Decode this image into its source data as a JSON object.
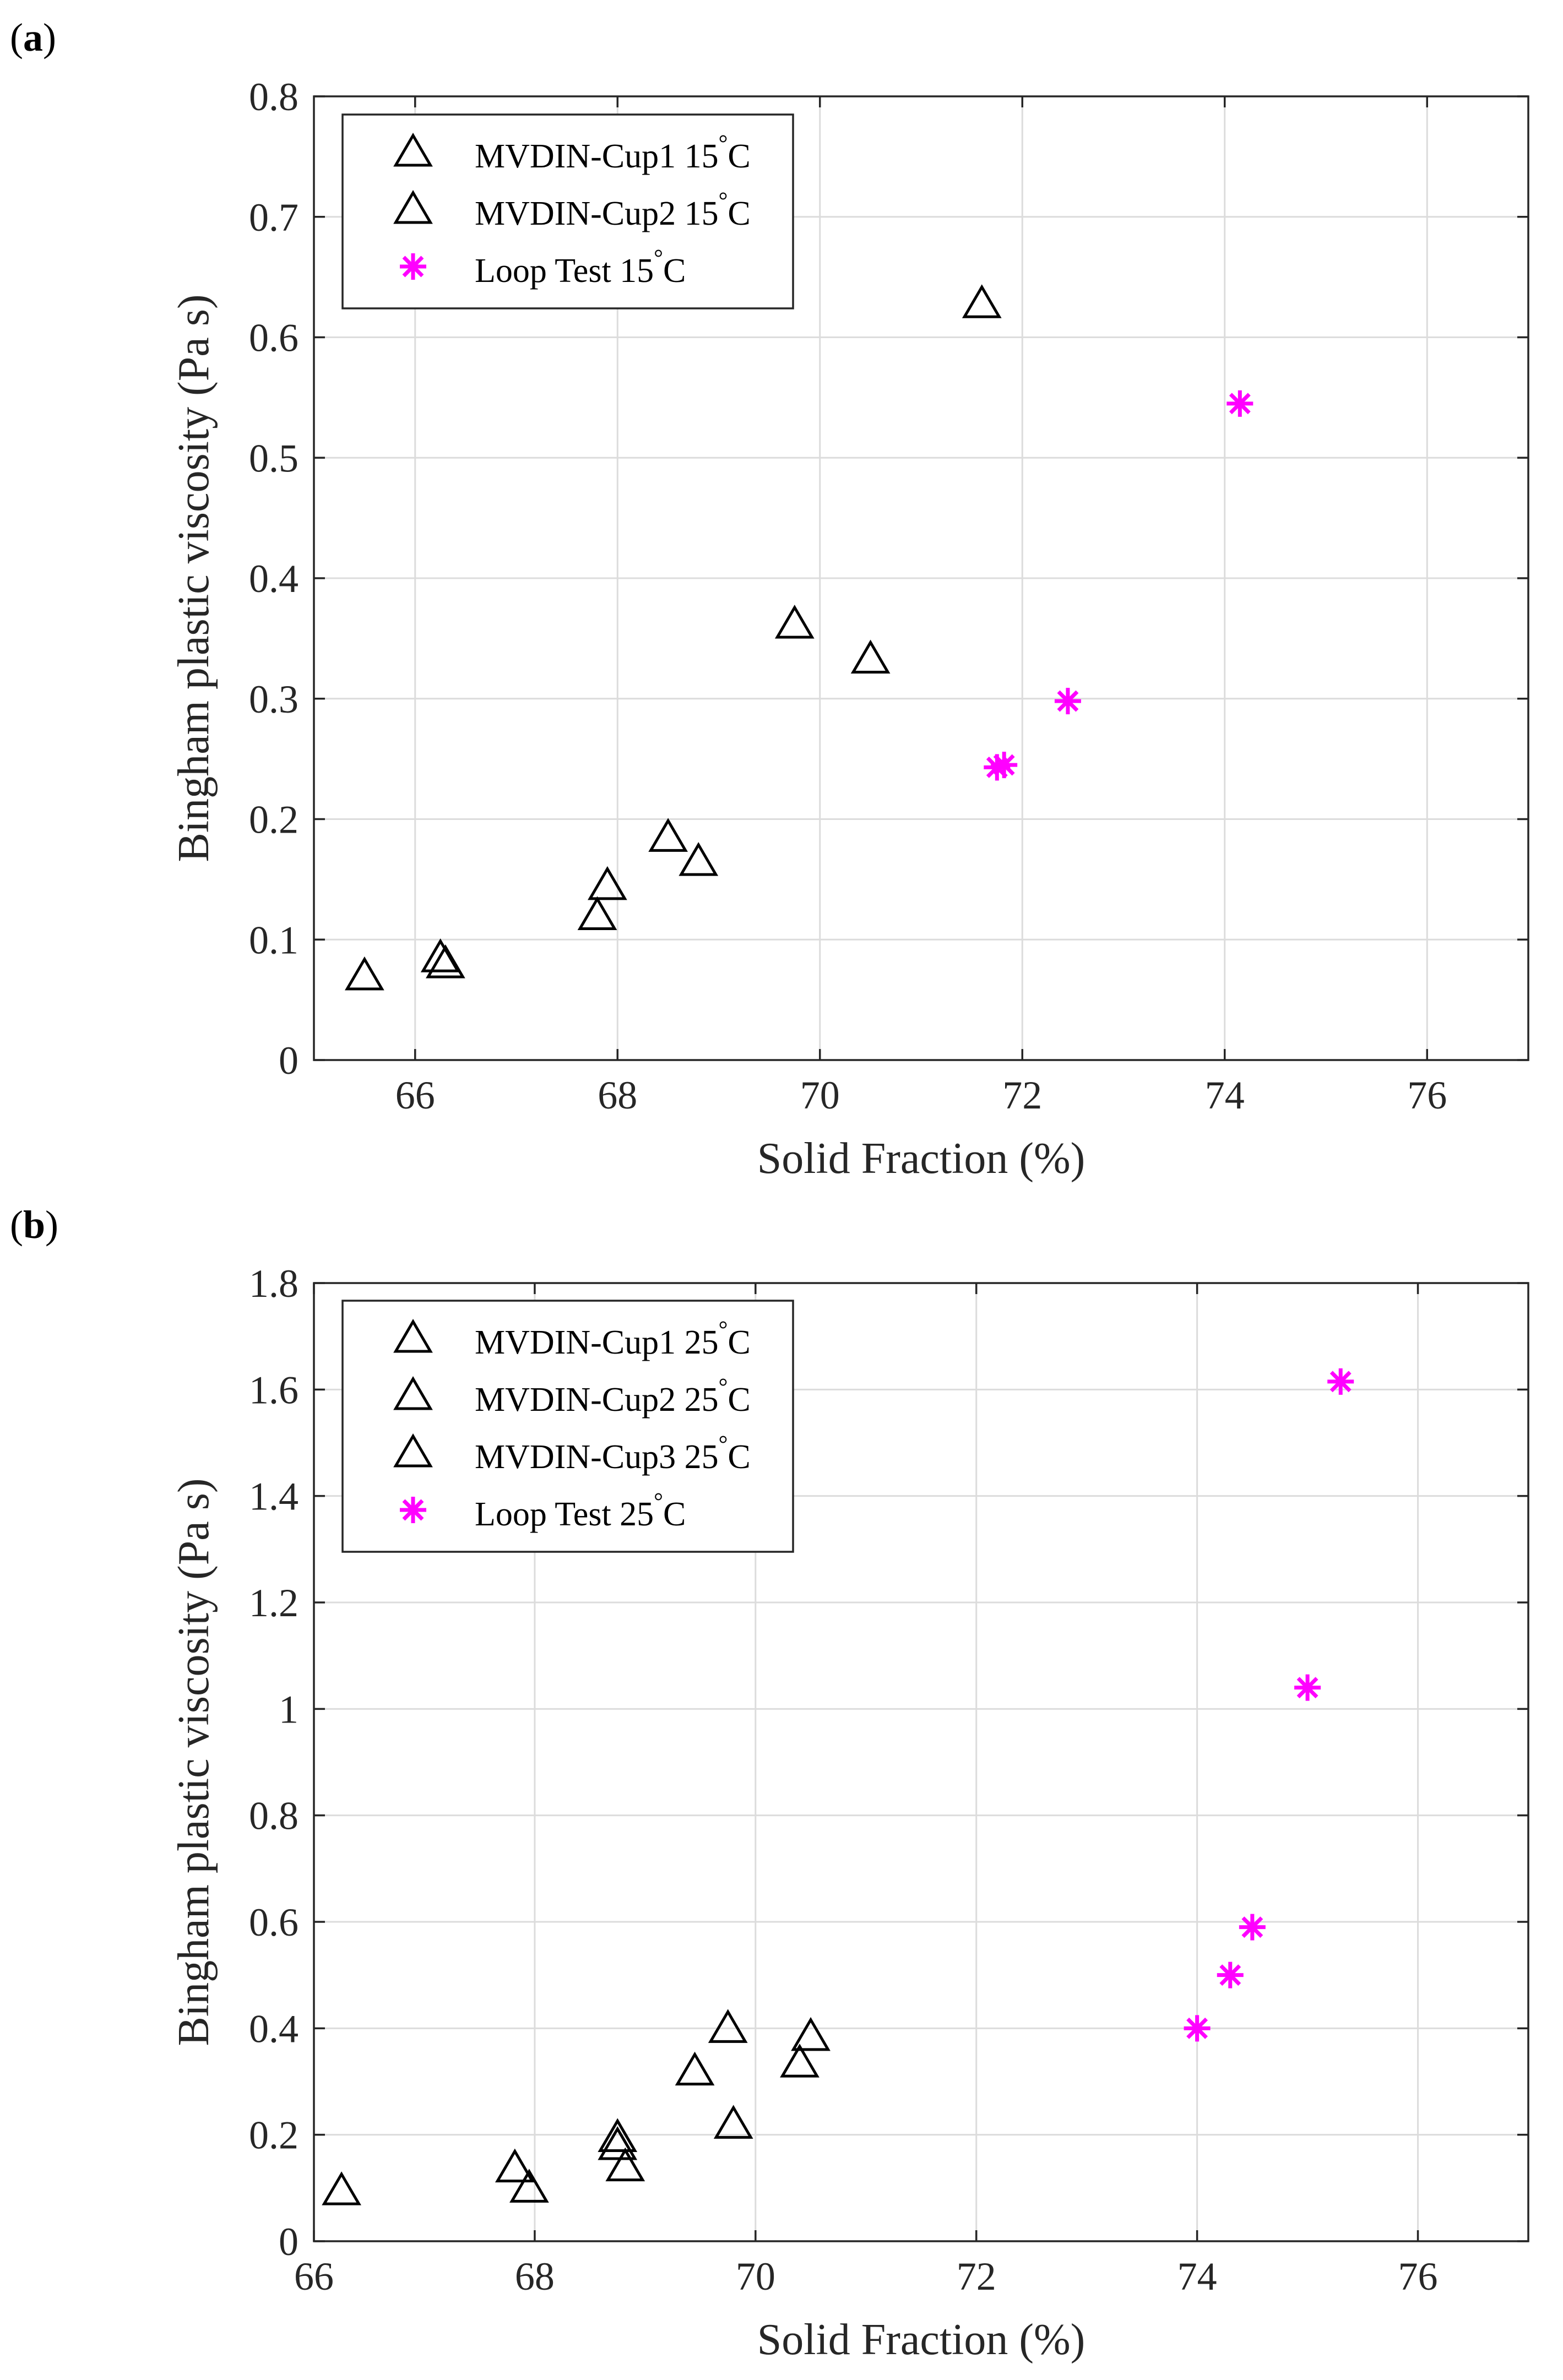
{
  "chart_data": [
    {
      "type": "scatter",
      "panel_label": "(a)",
      "panel_letter": "a",
      "xlabel": "Solid Fraction (%)",
      "ylabel": "Bingham plastic viscosity (Pa s)",
      "xlim": [
        65,
        77
      ],
      "ylim": [
        0,
        0.8
      ],
      "xticks": [
        66,
        68,
        70,
        72,
        74,
        76
      ],
      "xtick_labels": [
        "66",
        "68",
        "70",
        "72",
        "74",
        "76"
      ],
      "yticks": [
        0,
        0.1,
        0.2,
        0.3,
        0.4,
        0.5,
        0.6,
        0.7,
        0.8
      ],
      "ytick_labels": [
        "0",
        "0.1",
        "0.2",
        "0.3",
        "0.4",
        "0.5",
        "0.6",
        "0.7",
        "0.8"
      ],
      "grid": true,
      "legend_position": "top-left",
      "series": [
        {
          "name": "MVDIN-Cup1 15°C",
          "legend_text": "MVDIN-Cup1 15",
          "legend_unit": "C",
          "marker": "triangle",
          "color": "#000000",
          "x": [
            65.5,
            66.25,
            67.8,
            68.5,
            69.75,
            71.6
          ],
          "y": [
            0.07,
            0.085,
            0.12,
            0.185,
            0.362,
            0.628
          ]
        },
        {
          "name": "MVDIN-Cup2 15°C",
          "legend_text": "MVDIN-Cup2 15",
          "legend_unit": "C",
          "marker": "triangle",
          "color": "#000000",
          "x": [
            66.3,
            67.9,
            68.8,
            70.5
          ],
          "y": [
            0.08,
            0.145,
            0.165,
            0.333
          ]
        },
        {
          "name": "Loop Test 15°C",
          "legend_text": "Loop Test 15",
          "legend_unit": "C",
          "marker": "star",
          "color": "#ff00ff",
          "x": [
            71.75,
            71.82,
            72.45,
            74.15
          ],
          "y": [
            0.243,
            0.245,
            0.298,
            0.545
          ]
        }
      ]
    },
    {
      "type": "scatter",
      "panel_label": "(b)",
      "panel_letter": "b",
      "xlabel": "Solid Fraction (%)",
      "ylabel": "Bingham plastic viscosity (Pa s)",
      "xlim": [
        66,
        77
      ],
      "ylim": [
        0,
        1.8
      ],
      "xticks": [
        66,
        68,
        70,
        72,
        74,
        76
      ],
      "xtick_labels": [
        "66",
        "68",
        "70",
        "72",
        "74",
        "76"
      ],
      "yticks": [
        0,
        0.2,
        0.4,
        0.6,
        0.8,
        1.0,
        1.2,
        1.4,
        1.6,
        1.8
      ],
      "ytick_labels": [
        "0",
        "0.2",
        "0.4",
        "0.6",
        "0.8",
        "1",
        "1.2",
        "1.4",
        "1.6",
        "1.8"
      ],
      "grid": true,
      "legend_position": "top-left",
      "series": [
        {
          "name": "MVDIN-Cup1 25°C",
          "legend_text": "MVDIN-Cup1 25",
          "legend_unit": "C",
          "marker": "triangle",
          "color": "#000000",
          "x": [
            66.25,
            67.82,
            68.75,
            69.75,
            70.5
          ],
          "y": [
            0.095,
            0.138,
            0.195,
            0.4,
            0.385
          ]
        },
        {
          "name": "MVDIN-Cup2 25°C",
          "legend_text": "MVDIN-Cup2 25",
          "legend_unit": "C",
          "marker": "triangle",
          "color": "#000000",
          "x": [
            67.95,
            68.75,
            69.8
          ],
          "y": [
            0.1,
            0.18,
            0.22
          ]
        },
        {
          "name": "MVDIN-Cup3 25°C",
          "legend_text": "MVDIN-Cup3 25",
          "legend_unit": "C",
          "marker": "triangle",
          "color": "#000000",
          "x": [
            68.82,
            69.45,
            70.4
          ],
          "y": [
            0.14,
            0.32,
            0.335
          ]
        },
        {
          "name": "Loop Test 25°C",
          "legend_text": "Loop Test 25",
          "legend_unit": "C",
          "marker": "star",
          "color": "#ff00ff",
          "x": [
            74.0,
            74.3,
            74.5,
            75.0,
            75.3
          ],
          "y": [
            0.4,
            0.5,
            0.59,
            1.04,
            1.615
          ]
        }
      ]
    }
  ]
}
